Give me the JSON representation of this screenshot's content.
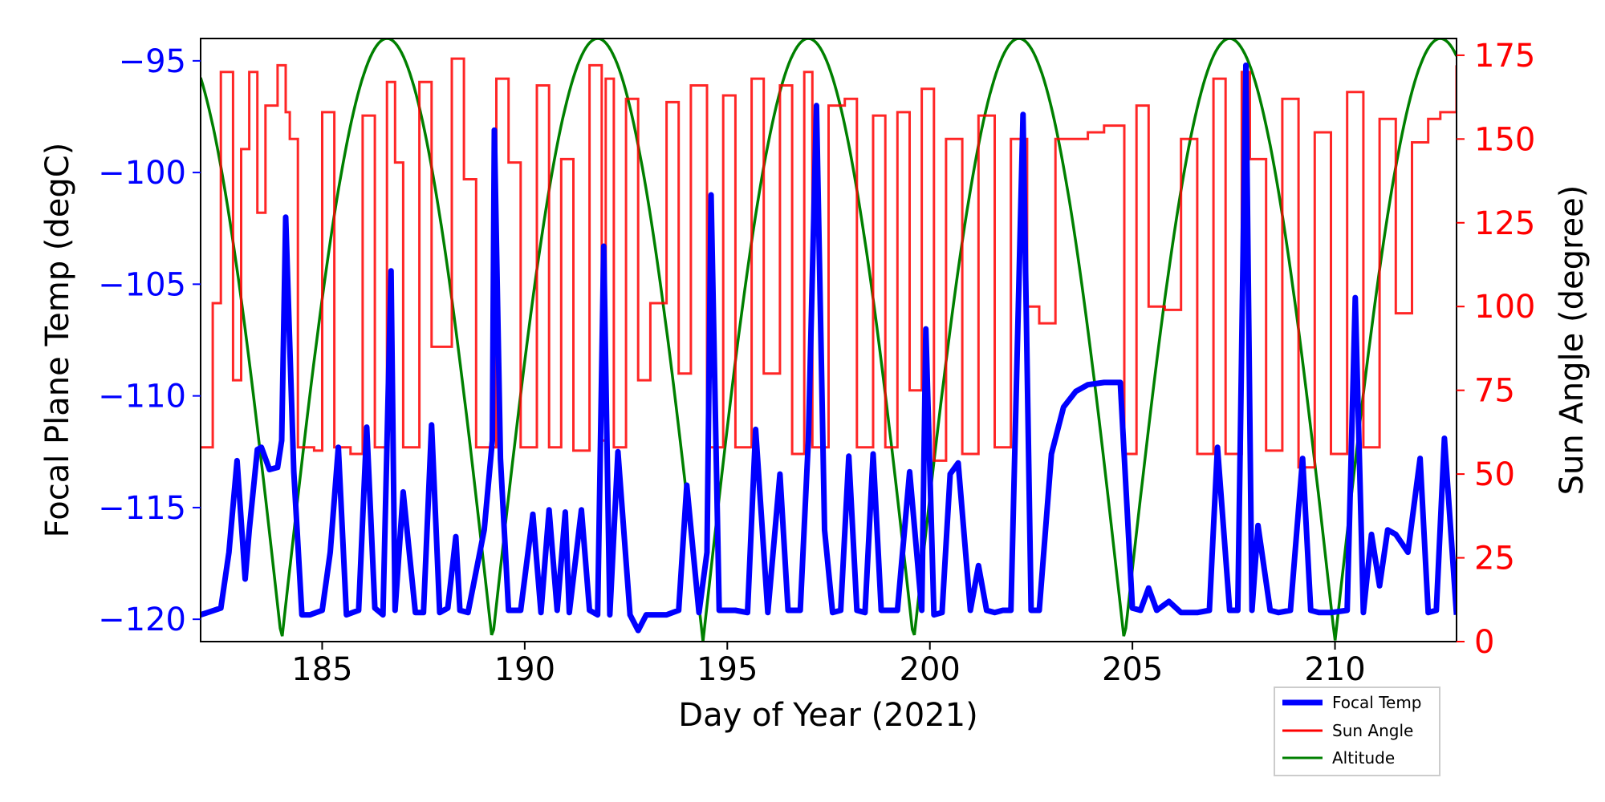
{
  "chart_data": {
    "type": "line",
    "title": "",
    "xlabel": "Day of Year (2021)",
    "ylabel_left": "Focal Plane Temp (degC)",
    "ylabel_right": "Sun Angle (degree)",
    "xlim": [
      182,
      213
    ],
    "ylim_left": [
      -121,
      -94
    ],
    "ylim_right": [
      0,
      180
    ],
    "x_ticks": [
      185,
      190,
      195,
      200,
      205,
      210
    ],
    "x_tick_labels": [
      "185",
      "190",
      "195",
      "200",
      "205",
      "210"
    ],
    "y_left_ticks": [
      -95,
      -100,
      -105,
      -110,
      -115,
      -120
    ],
    "y_left_tick_labels": [
      "−95",
      "−100",
      "−105",
      "−110",
      "−115",
      "−120"
    ],
    "y_right_ticks": [
      175,
      150,
      125,
      100,
      75,
      50,
      25,
      0
    ],
    "y_right_tick_labels": [
      "175",
      "150",
      "125",
      "100",
      "75",
      "50",
      "25",
      "0"
    ],
    "grid": false,
    "legend": {
      "position": "bottom-right, outside below axes",
      "entries": [
        "Focal Temp",
        "Sun Angle",
        "Altitude"
      ]
    },
    "colors": {
      "focal_temp": "#0000ff",
      "sun_angle": "#ff0000",
      "altitude": "#008000",
      "left_axis": "#0000ff",
      "right_axis": "#ff0000"
    },
    "series": [
      {
        "name": "Focal Temp",
        "axis": "left",
        "style": "thick-line",
        "x": [
          182.0,
          182.5,
          182.7,
          182.9,
          183.1,
          183.2,
          183.4,
          183.5,
          183.7,
          183.9,
          184.0,
          184.1,
          184.3,
          184.5,
          184.7,
          185.0,
          185.2,
          185.4,
          185.6,
          185.9,
          186.1,
          186.3,
          186.5,
          186.7,
          186.8,
          187.0,
          187.3,
          187.5,
          187.7,
          187.9,
          188.1,
          188.3,
          188.4,
          188.6,
          189.0,
          189.2,
          189.25,
          189.4,
          189.6,
          189.9,
          190.2,
          190.4,
          190.6,
          190.8,
          191.0,
          191.1,
          191.4,
          191.6,
          191.8,
          191.95,
          192.1,
          192.3,
          192.6,
          192.8,
          193.0,
          193.5,
          193.8,
          194.0,
          194.3,
          194.5,
          194.6,
          194.8,
          195.2,
          195.5,
          195.7,
          196.0,
          196.3,
          196.5,
          196.8,
          197.0,
          197.2,
          197.4,
          197.6,
          197.8,
          198.0,
          198.2,
          198.4,
          198.6,
          198.8,
          199.0,
          199.2,
          199.5,
          199.8,
          199.9,
          200.1,
          200.3,
          200.5,
          200.7,
          201.0,
          201.2,
          201.4,
          201.6,
          201.8,
          202.0,
          202.3,
          202.5,
          202.7,
          203.0,
          203.3,
          203.6,
          203.9,
          204.3,
          204.7,
          205.0,
          205.2,
          205.4,
          205.6,
          205.9,
          206.2,
          206.6,
          206.9,
          207.1,
          207.4,
          207.6,
          207.8,
          207.95,
          208.1,
          208.4,
          208.6,
          208.9,
          209.2,
          209.4,
          209.6,
          209.9,
          210.3,
          210.5,
          210.7,
          210.9,
          211.1,
          211.3,
          211.5,
          211.8,
          212.1,
          212.3,
          212.5,
          212.7,
          213.0
        ],
        "y": [
          -119.8,
          -119.5,
          -117,
          -112.9,
          -118.2,
          -116,
          -112.4,
          -112.3,
          -113.3,
          -113.2,
          -112,
          -102,
          -113.4,
          -119.8,
          -119.8,
          -119.6,
          -117,
          -112.3,
          -119.8,
          -119.6,
          -111.4,
          -119.5,
          -119.8,
          -104.4,
          -119.6,
          -114.3,
          -119.7,
          -119.7,
          -111.3,
          -119.7,
          -119.5,
          -116.3,
          -119.6,
          -119.7,
          -116,
          -112,
          -98.1,
          -112.8,
          -119.6,
          -119.6,
          -115.3,
          -119.7,
          -115.1,
          -119.6,
          -115.2,
          -119.7,
          -115.1,
          -119.6,
          -119.8,
          -103.3,
          -119.8,
          -112.5,
          -119.8,
          -120.5,
          -119.8,
          -119.8,
          -119.6,
          -114,
          -119.7,
          -117,
          -101,
          -119.6,
          -119.6,
          -119.7,
          -111.5,
          -119.7,
          -113.5,
          -119.6,
          -119.6,
          -112,
          -97,
          -116,
          -119.7,
          -119.6,
          -112.7,
          -119.6,
          -119.7,
          -112.6,
          -119.6,
          -119.6,
          -119.6,
          -113.4,
          -119.6,
          -107,
          -119.8,
          -119.7,
          -113.5,
          -113,
          -119.6,
          -117.6,
          -119.6,
          -119.7,
          -119.6,
          -119.6,
          -97.4,
          -119.6,
          -119.6,
          -112.6,
          -110.5,
          -109.8,
          -109.5,
          -109.4,
          -109.4,
          -119.5,
          -119.6,
          -118.6,
          -119.6,
          -119.2,
          -119.7,
          -119.7,
          -119.6,
          -112.3,
          -119.6,
          -119.6,
          -95.2,
          -119.6,
          -115.8,
          -119.6,
          -119.7,
          -119.6,
          -112.8,
          -119.6,
          -119.7,
          -119.7,
          -119.6,
          -105.6,
          -119.7,
          -116.2,
          -118.5,
          -116,
          -116.2,
          -117,
          -112.8,
          -119.7,
          -119.6,
          -111.9,
          -119.8
        ]
      },
      {
        "name": "Sun Angle",
        "axis": "right",
        "style": "step-line",
        "x": [
          182.0,
          182.3,
          182.5,
          182.8,
          183.0,
          183.2,
          183.4,
          183.6,
          183.9,
          184.1,
          184.2,
          184.4,
          184.8,
          185.0,
          185.3,
          185.7,
          186.0,
          186.3,
          186.6,
          186.8,
          187.0,
          187.4,
          187.7,
          188.2,
          188.5,
          188.8,
          189.3,
          189.6,
          189.9,
          190.3,
          190.6,
          190.9,
          191.2,
          191.6,
          191.9,
          192.0,
          192.2,
          192.5,
          192.8,
          193.1,
          193.5,
          193.8,
          194.1,
          194.5,
          194.9,
          195.2,
          195.6,
          195.9,
          196.3,
          196.6,
          196.9,
          197.1,
          197.5,
          197.9,
          198.2,
          198.6,
          198.9,
          199.2,
          199.5,
          199.8,
          200.1,
          200.4,
          200.8,
          201.2,
          201.6,
          202.0,
          202.4,
          202.7,
          203.1,
          203.5,
          203.9,
          204.3,
          204.8,
          205.1,
          205.4,
          205.8,
          206.2,
          206.6,
          207.0,
          207.3,
          207.7,
          207.9,
          208.3,
          208.7,
          209.1,
          209.5,
          209.9,
          210.3,
          210.7,
          211.1,
          211.5,
          211.9,
          212.3,
          212.6,
          213.0
        ],
        "y": [
          58,
          101,
          170,
          78,
          147,
          170,
          128,
          160,
          172,
          158,
          150,
          58,
          57,
          158,
          58,
          56,
          157,
          58,
          167,
          143,
          58,
          167,
          88,
          174,
          138,
          58,
          168,
          143,
          58,
          166,
          58,
          144,
          57,
          172,
          60,
          168,
          58,
          162,
          78,
          101,
          161,
          80,
          166,
          58,
          163,
          58,
          168,
          80,
          166,
          56,
          170,
          58,
          160,
          162,
          58,
          157,
          58,
          158,
          75,
          165,
          54,
          150,
          56,
          157,
          58,
          150,
          100,
          95,
          150,
          150,
          152,
          154,
          56,
          160,
          100,
          99,
          150,
          56,
          168,
          56,
          170,
          144,
          57,
          162,
          52,
          152,
          56,
          164,
          58,
          156,
          98,
          149,
          156,
          158,
          172
        ]
      },
      {
        "name": "Altitude",
        "axis": "right",
        "style": "line",
        "function": "absolute-sine",
        "period_days": 5.2,
        "zero_crossing_days": [
          184.0,
          189.2,
          194.4,
          199.6,
          204.8,
          210.0
        ],
        "peak_value": 180
      }
    ]
  }
}
